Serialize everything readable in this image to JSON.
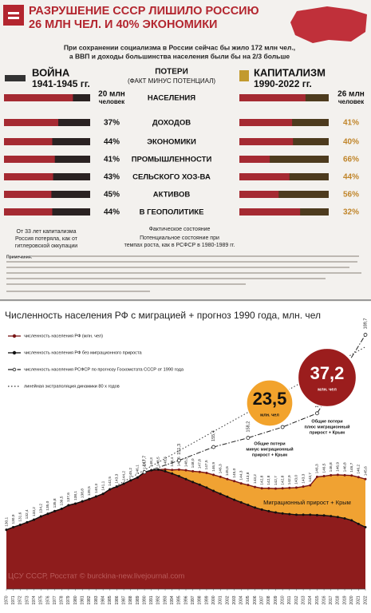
{
  "infographic": {
    "title": [
      "РАЗРУШЕНИЕ СССР ЛИШИЛО РОССИЮ",
      "26 МЛН ЧЕЛ. И 40% ЭКОНОМИКИ"
    ],
    "subtitle": [
      "При сохранении социализма в России сейчас бы жило 172 млн чел.,",
      "а ВВП и доходы большинства населения были бы на 2/3 больше"
    ],
    "left_header": {
      "title": "ВОЙНА",
      "period": "1941-1945 гг."
    },
    "center_header": [
      "ПОТЕРИ",
      "(ФАКТ МИНУС ПОТЕНЦИАЛ)"
    ],
    "right_header": {
      "title": "КАПИТАЛИЗМ",
      "period": "1990-2022 гг."
    },
    "rows": [
      {
        "name": "НАСЕЛЕНИЯ",
        "left": {
          "value": 20,
          "label": "20 млн"
        },
        "left_unit": "человек",
        "right": {
          "value": 26,
          "label": "26 млн"
        },
        "right_unit": "человек"
      },
      {
        "name": "ДОХОДОВ",
        "left": {
          "value": 37,
          "label": "37%"
        },
        "right": {
          "value": 41,
          "label": "41%"
        }
      },
      {
        "name": "ЭКОНОМИКИ",
        "left": {
          "value": 44,
          "label": "44%"
        },
        "right": {
          "value": 40,
          "label": "40%"
        }
      },
      {
        "name": "ПРОМЫШЛЕННОСТИ",
        "left": {
          "value": 41,
          "label": "41%"
        },
        "right": {
          "value": 66,
          "label": "66%"
        }
      },
      {
        "name": "СЕЛЬСКОГО ХОЗ-ВА",
        "left": {
          "value": 43,
          "label": "43%"
        },
        "right": {
          "value": 44,
          "label": "44%"
        }
      },
      {
        "name": "АКТИВОВ",
        "left": {
          "value": 45,
          "label": "45%"
        },
        "right": {
          "value": 56,
          "label": "56%"
        }
      },
      {
        "name": "В ГЕОПОЛИТИКЕ",
        "left": {
          "value": 44,
          "label": "44%"
        },
        "right": {
          "value": 32,
          "label": "32%"
        }
      }
    ],
    "left_footer": [
      "От 33 лет капитализма",
      "Россия потеряла, как от",
      "гитлеровской оккупации"
    ],
    "fact_label": "Фактическое состояние",
    "potential_label": [
      "Потенциальное состояние при",
      "темпах роста, как в РСФСР в 1980-1989 гг."
    ],
    "notes_title": "Примечания:"
  },
  "chart_data": {
    "type": "line",
    "title": "Численность населения РФ с миграцией + прогноз 1990 года, млн. чел",
    "x": [
      1970,
      1971,
      1972,
      1973,
      1974,
      1975,
      1976,
      1977,
      1978,
      1979,
      1980,
      1981,
      1982,
      1983,
      1984,
      1985,
      1986,
      1987,
      1988,
      1989,
      1990,
      1991,
      1992,
      1993,
      1994,
      1995,
      1996,
      1997,
      1998,
      1999,
      2000,
      2001,
      2002,
      2003,
      2004,
      2005,
      2006,
      2007,
      2008,
      2009,
      2010,
      2011,
      2012,
      2013,
      2014,
      2015,
      2016,
      2017,
      2018,
      2019,
      2020,
      2021,
      2022
    ],
    "xlim": [
      1970,
      2022
    ],
    "ylim": [
      112,
      192
    ],
    "series": [
      {
        "name": "численность населения РФ (млн. чел)",
        "color": "#7a1616",
        "style": "solid",
        "values": [
          130.1,
          130.9,
          131.6,
          132.4,
          133.2,
          134.2,
          135.0,
          135.8,
          136.5,
          137.6,
          138.1,
          138.8,
          139.5,
          140.3,
          141.1,
          142.5,
          143.3,
          144.2,
          145.2,
          146.1,
          147.7,
          148.3,
          148.5,
          148.6,
          148.4,
          148.5,
          148.3,
          148.0,
          147.8,
          147.5,
          146.9,
          146.3,
          145.6,
          145.0,
          144.3,
          143.8,
          143.2,
          142.8,
          142.8,
          142.7,
          142.8,
          142.9,
          143.0,
          143.3,
          143.7,
          146.3,
          146.5,
          146.8,
          146.9,
          146.8,
          146.7,
          146.2,
          145.6
        ],
        "value_labels": [
          "130,1",
          "130,9",
          "131,6",
          "132,4",
          "133,2",
          "134,2",
          "135,0",
          "135,8",
          "136,5",
          "137,6",
          "138,1",
          "138,8",
          "139,5",
          "140,3",
          "141,1",
          "142,5",
          "143,3",
          "144,2",
          "145,2",
          "146,1",
          "147,7",
          "148,3",
          "148,5",
          "148,6",
          "148,4",
          "148,5",
          "148,3",
          "148,0",
          "147,8",
          "147,5",
          "146,9",
          "146,3",
          "145,6",
          "145,0",
          "144,3",
          "143,8",
          "143,2",
          "142,8",
          "142,8",
          "142,7",
          "142,8",
          "142,9",
          "143,0",
          "143,3",
          "143,7",
          "146,3",
          "146,5",
          "146,8",
          "146,9",
          "146,8",
          "146,7",
          "146,2",
          "145,6"
        ]
      },
      {
        "name": "численность населения РФ без миграционного прироста",
        "color": "#111111",
        "style": "solid",
        "values": [
          130.1,
          130.9,
          131.6,
          132.4,
          133.2,
          134.2,
          135.0,
          135.8,
          136.5,
          137.6,
          138.1,
          138.8,
          139.5,
          140.3,
          141.1,
          142.5,
          143.3,
          144.2,
          145.2,
          146.1,
          147.7,
          148.3,
          148.5,
          148.0,
          147.3,
          146.5,
          145.6,
          144.7,
          143.9,
          143.0,
          142.0,
          141.1,
          140.2,
          139.3,
          138.5,
          137.7,
          136.9,
          136.3,
          135.8,
          135.4,
          135.1,
          134.9,
          134.7,
          134.7,
          134.7,
          134.6,
          134.5,
          134.3,
          134.0,
          133.6,
          133.0,
          131.9,
          130.9
        ]
      },
      {
        "name": "численность населения РСФСР по прогнозу Госкомстата СССР от 1990 года",
        "color": "#222222",
        "style": "dashdot",
        "x": [
          1990,
          1995,
          2000,
          2005,
          2010,
          2015,
          2022
        ],
        "values": [
          147.7,
          151.3,
          155.4,
          158.2,
          161.5,
          165.7,
          189.7
        ],
        "value_labels": [
          "147,7",
          "151,3",
          "155,4",
          "158,2",
          "161,5",
          "165,7",
          "189,7"
        ]
      },
      {
        "name": "линейная экстраполяция динамики 80 х годов",
        "color": "#333333",
        "style": "dotted",
        "x": [
          1985,
          2022
        ],
        "values": [
          142.5,
          186.0
        ]
      }
    ],
    "area_fill": {
      "base": "#8e1c1c",
      "migration": "#f0a232"
    },
    "annotations": [
      {
        "value": 23.5,
        "label": "23,5",
        "unit": "млн. чел",
        "text": [
          "Общие потери",
          "минус миграционный",
          "прирост + Крым"
        ],
        "color": "#f2a32c"
      },
      {
        "value": 37.2,
        "label": "37,2",
        "unit": "млн. чел",
        "text": [
          "Общие потери",
          "плюс миграционный",
          "прирост + Крым"
        ],
        "color": "#9b1d1d"
      }
    ],
    "area_label": "Миграционный прирост + Крым",
    "source": "ЦСУ СССР, Росстат © burckina-new.livejournal.com"
  }
}
